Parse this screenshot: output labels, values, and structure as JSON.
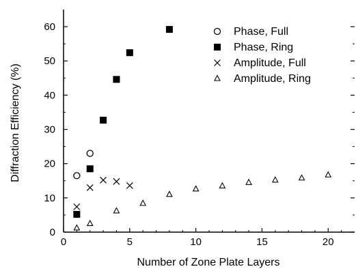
{
  "chart_data": {
    "type": "scatter",
    "title": "",
    "xlabel": "Number of Zone Plate Layers",
    "ylabel": "Diffraction Efficiency (%)",
    "xlim": [
      0,
      22
    ],
    "ylim": [
      0,
      65
    ],
    "x_ticks": [
      0,
      5,
      10,
      15,
      20
    ],
    "y_ticks": [
      0,
      10,
      20,
      30,
      40,
      50,
      60
    ],
    "grid": false,
    "legend_position": "top-right",
    "series": [
      {
        "name": "Phase, Full",
        "marker": "open-circle",
        "x": [
          1,
          2
        ],
        "y": [
          16.5,
          23.0
        ]
      },
      {
        "name": "Phase, Ring",
        "marker": "filled-square",
        "x": [
          1,
          2,
          3,
          4,
          5,
          8
        ],
        "y": [
          5.2,
          18.5,
          32.7,
          44.6,
          52.4,
          59.2
        ]
      },
      {
        "name": "Amplitude, Full",
        "marker": "x",
        "x": [
          1,
          2,
          3,
          4,
          5
        ],
        "y": [
          7.4,
          13.0,
          15.2,
          14.8,
          13.6
        ]
      },
      {
        "name": "Amplitude, Ring",
        "marker": "open-triangle",
        "x": [
          1,
          2,
          4,
          6,
          8,
          10,
          12,
          14,
          16,
          18,
          20
        ],
        "y": [
          1.2,
          2.5,
          6.2,
          8.4,
          11.0,
          12.6,
          13.5,
          14.5,
          15.2,
          15.8,
          16.7
        ]
      }
    ]
  }
}
